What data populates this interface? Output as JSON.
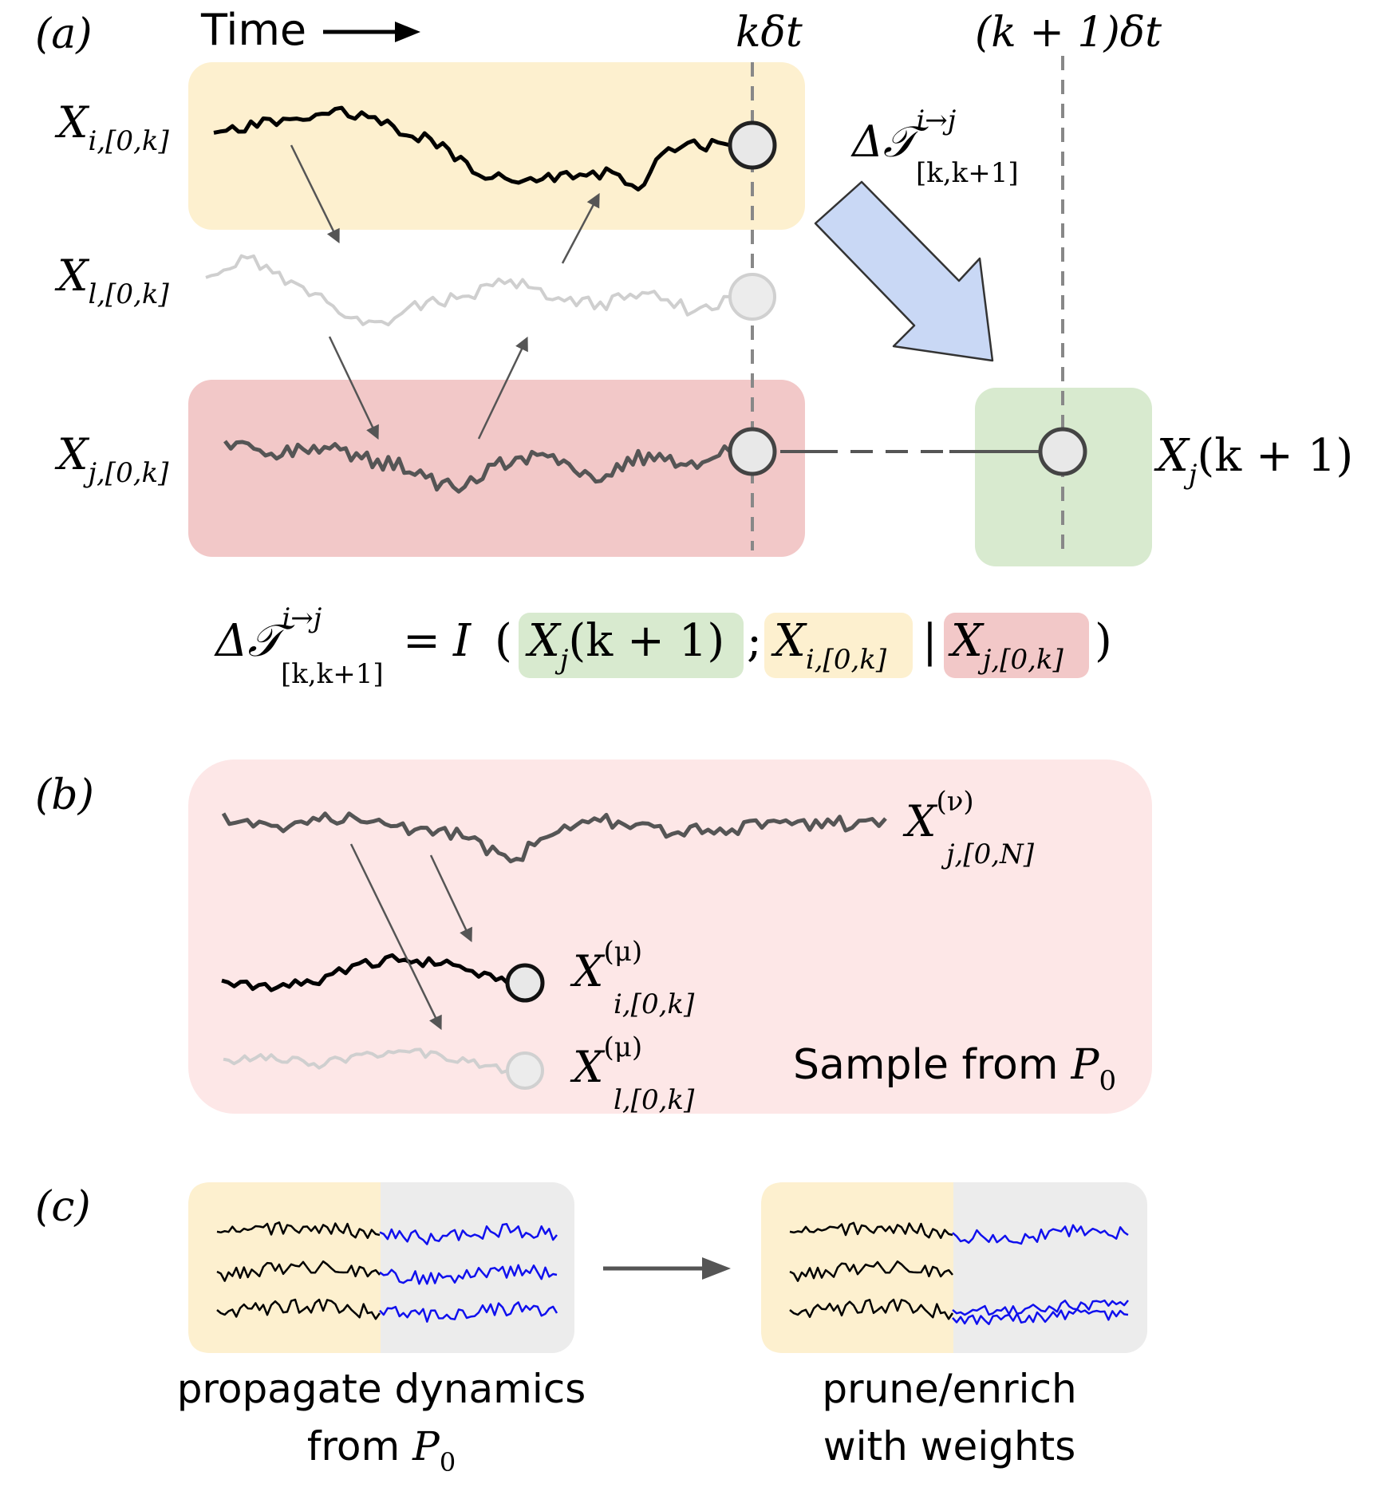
{
  "panels": {
    "a": {
      "label": "(a)",
      "time_label": "Time",
      "time_k_label": "kδt",
      "time_k1_label": "(k + 1)δt",
      "series": [
        {
          "id": "i",
          "base": "X",
          "sub": "i,[0,k]"
        },
        {
          "id": "l",
          "base": "X",
          "sub": "l,[0,k]"
        },
        {
          "id": "j",
          "base": "X",
          "sub": "j,[0,k]"
        }
      ],
      "target": {
        "base": "X",
        "sub": "j",
        "arg": "(k + 1)"
      },
      "transfer": {
        "base": "Δ𝒯",
        "sup": "i→j",
        "sub": "[k,k+1]"
      },
      "equation": {
        "lhs_base": "Δ𝒯",
        "lhs_sup": "i→j",
        "lhs_sub": "[k,k+1]",
        "equals": "=",
        "operator": "I",
        "open": "(",
        "term1_base": "X",
        "term1_sub": "j",
        "term1_arg": "(k + 1)",
        "semicolon": ";",
        "term2_base": "X",
        "term2_sub": "i,[0,k]",
        "bar": "|",
        "term3_base": "X",
        "term3_sub": "j,[0,k]",
        "close": ")"
      }
    },
    "b": {
      "label": "(b)",
      "series": [
        {
          "id": "j",
          "base": "X",
          "sup": "(ν)",
          "sub": "j,[0,N]"
        },
        {
          "id": "i",
          "base": "X",
          "sup": "(μ)",
          "sub": "i,[0,k]"
        },
        {
          "id": "l",
          "base": "X",
          "sup": "(μ)",
          "sub": "l,[0,k]"
        }
      ],
      "caption_text": "Sample from",
      "caption_math": "P",
      "caption_sub": "0"
    },
    "c": {
      "label": "(c)",
      "left_line1": "propagate dynamics",
      "left_line2": "from",
      "left_math": "P",
      "left_sub": "0",
      "right_line1": "prune/enrich",
      "right_line2": "with weights"
    }
  },
  "colors": {
    "yellow_box": "#fdf0cf",
    "red_box": "#f2c8c8",
    "green_box": "#d8eacf",
    "pink_panel": "#fde7e7",
    "gray_box": "#ececec",
    "blue_arrow_fill": "#c9d8f5",
    "trace_black": "#000000",
    "trace_dark": "#555555",
    "trace_light": "#cccccc",
    "trace_blue": "#1010ee"
  }
}
